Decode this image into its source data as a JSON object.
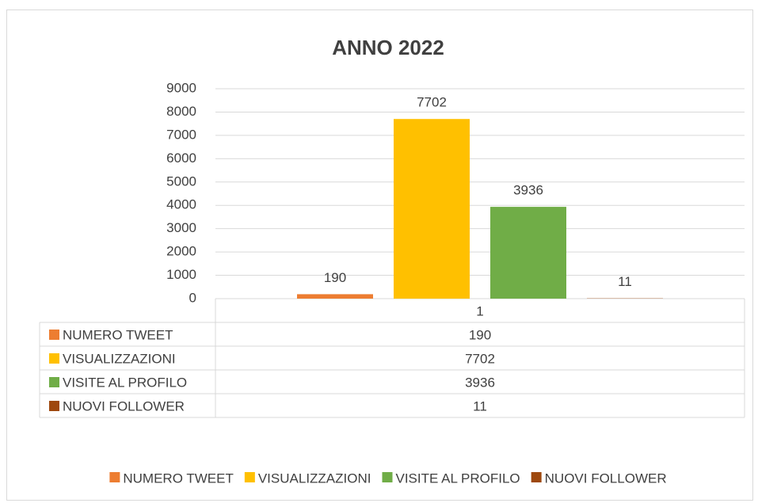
{
  "chart_data": {
    "type": "bar",
    "title": "ANNO 2022",
    "categories": [
      "1"
    ],
    "series": [
      {
        "name": "NUMERO TWEET",
        "color": "#ED7D31",
        "values": [
          190
        ]
      },
      {
        "name": "VISUALIZZAZIONI",
        "color": "#FFC000",
        "values": [
          7702
        ]
      },
      {
        "name": "VISITE AL PROFILO",
        "color": "#70AD47",
        "values": [
          3936
        ]
      },
      {
        "name": "NUOVI FOLLOWER",
        "color": "#9E480E",
        "values": [
          11
        ]
      }
    ],
    "ylim": [
      0,
      9000
    ],
    "yticks": [
      0,
      1000,
      2000,
      3000,
      4000,
      5000,
      6000,
      7000,
      8000,
      9000
    ],
    "grid": true,
    "data_table": true,
    "legend": "bottom"
  }
}
